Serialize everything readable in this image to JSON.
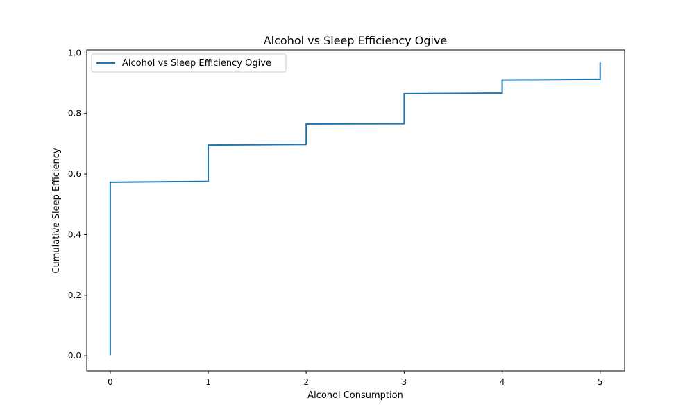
{
  "chart_data": {
    "type": "line",
    "title": "Alcohol vs Sleep Efficiency Ogive",
    "xlabel": "Alcohol Consumption",
    "ylabel": "Cumulative Sleep Efficiency",
    "xlim": [
      -0.24,
      5.25
    ],
    "ylim": [
      -0.05,
      1.01
    ],
    "xticks": [
      0,
      1,
      2,
      3,
      4,
      5
    ],
    "yticks": [
      0.0,
      0.2,
      0.4,
      0.6,
      0.8,
      1.0
    ],
    "xtick_labels": [
      "0",
      "1",
      "2",
      "3",
      "4",
      "5"
    ],
    "ytick_labels": [
      "0.0",
      "0.2",
      "0.4",
      "0.6",
      "0.8",
      "1.0"
    ],
    "legend": {
      "placement": "top-left",
      "entries": [
        "Alcohol vs Sleep Efficiency Ogive"
      ]
    },
    "grid": false,
    "series": [
      {
        "name": "Alcohol vs Sleep Efficiency Ogive",
        "color": "#1f77b4",
        "style": "step",
        "x": [
          0,
          0,
          1,
          1,
          2,
          2,
          3,
          3,
          4,
          4,
          5,
          5
        ],
        "y": [
          0.002,
          0.573,
          0.576,
          0.696,
          0.698,
          0.765,
          0.766,
          0.866,
          0.868,
          0.91,
          0.912,
          0.968
        ]
      }
    ]
  }
}
